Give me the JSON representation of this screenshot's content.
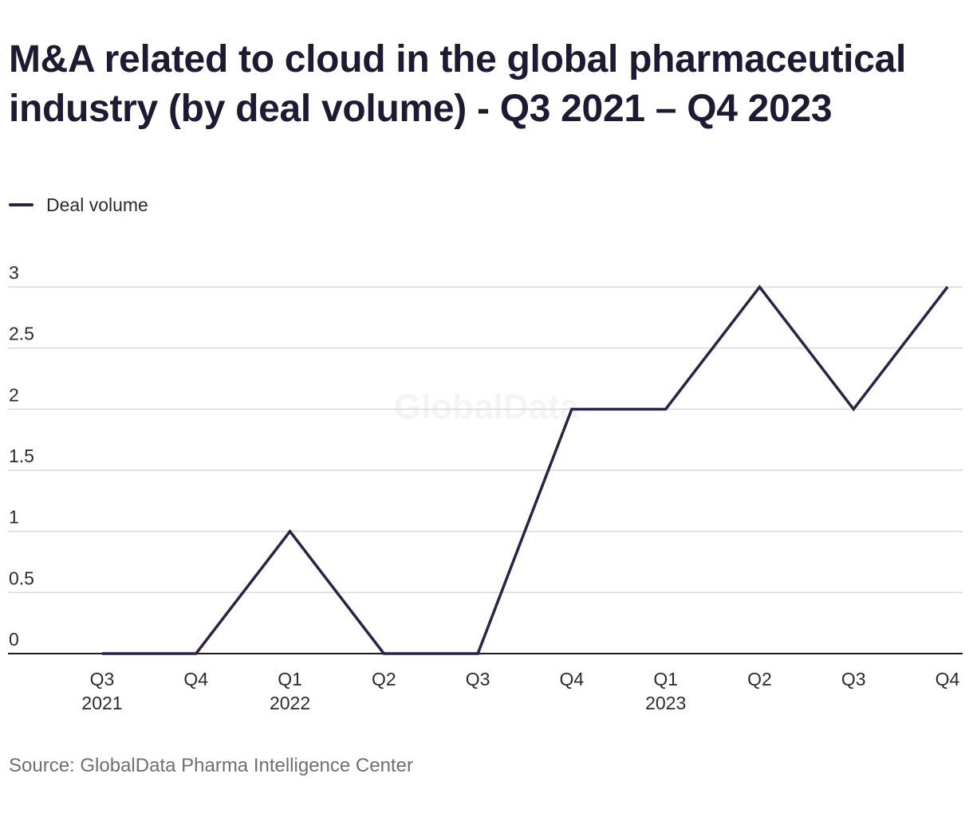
{
  "title": "M&A related to cloud in the global pharmaceutical industry (by deal volume) - Q3 2021 – Q4 2023",
  "source": "Source: GlobalData Pharma Intelligence Center",
  "watermark": "GlobalData",
  "colors": {
    "series": "#2d2145",
    "grid": "#d8d8d8",
    "axis": "#1a1a1a",
    "text": "#2a2a33",
    "source": "#6e6e78"
  },
  "chart_data": {
    "type": "line",
    "title": "M&A related to cloud in the global pharmaceutical industry (by deal volume) - Q3 2021 – Q4 2023",
    "xlabel": "",
    "ylabel": "",
    "categories": [
      {
        "quarter": "Q3",
        "year": "2021"
      },
      {
        "quarter": "Q4",
        "year": ""
      },
      {
        "quarter": "Q1",
        "year": "2022"
      },
      {
        "quarter": "Q2",
        "year": ""
      },
      {
        "quarter": "Q3",
        "year": ""
      },
      {
        "quarter": "Q4",
        "year": ""
      },
      {
        "quarter": "Q1",
        "year": "2023"
      },
      {
        "quarter": "Q2",
        "year": ""
      },
      {
        "quarter": "Q3",
        "year": ""
      },
      {
        "quarter": "Q4",
        "year": ""
      }
    ],
    "series": [
      {
        "name": "Deal volume",
        "values": [
          0,
          0,
          1,
          0,
          0,
          2,
          2,
          3,
          2,
          3
        ]
      }
    ],
    "yticks": [
      "0",
      "0.5",
      "1",
      "1.5",
      "2",
      "2.5",
      "3"
    ],
    "ylim": [
      0,
      3
    ],
    "grid": true,
    "legend_position": "top-left"
  }
}
